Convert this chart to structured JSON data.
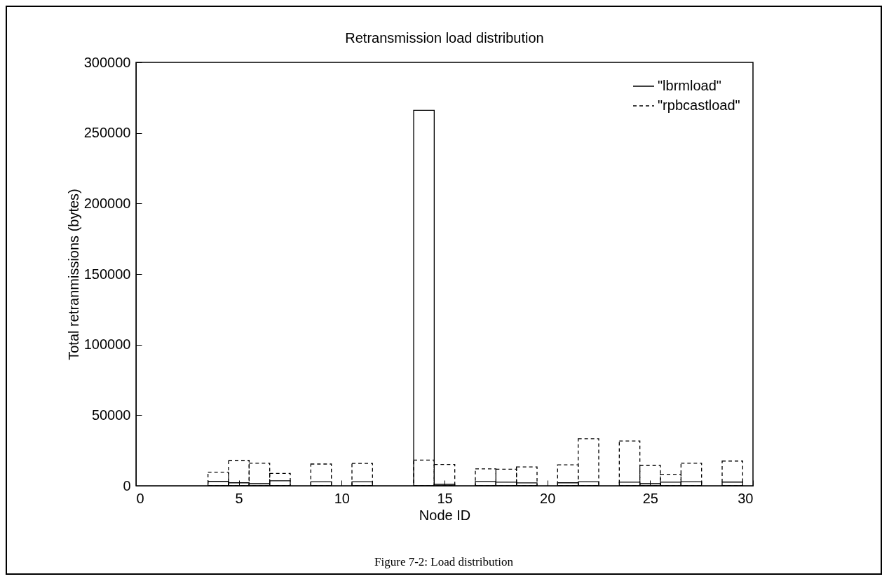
{
  "chart_data": {
    "type": "bar",
    "title": "Retransmission load distribution",
    "xlabel": "Node ID",
    "ylabel": "Total retranmissions (bytes)",
    "annotations": [
      "Figure 7-2: Load distribution"
    ],
    "x": [
      4,
      5,
      6,
      7,
      9,
      11,
      14,
      15,
      17,
      18,
      19,
      21,
      22,
      24,
      25,
      26,
      27,
      29
    ],
    "series": [
      {
        "name": "\"lbrmload\"",
        "color": "#000000",
        "line_style": "solid",
        "values": [
          3100,
          2100,
          1500,
          3500,
          2800,
          2800,
          266000,
          1000,
          3000,
          2500,
          2000,
          2100,
          2800,
          2500,
          1500,
          2500,
          2800,
          2600
        ]
      },
      {
        "name": "\"rpbcastload\"",
        "color": "#000000",
        "line_style": "dashed",
        "values": [
          9600,
          18000,
          16000,
          8800,
          15400,
          15800,
          18200,
          15100,
          12000,
          11700,
          13300,
          14800,
          33300,
          31700,
          14400,
          8100,
          16000,
          17500
        ]
      }
    ],
    "xlim": [
      0,
      30
    ],
    "xticks": [
      0,
      5,
      10,
      15,
      20,
      25,
      30
    ],
    "ylim": [
      0,
      300000
    ],
    "yticks": [
      0,
      50000,
      100000,
      150000,
      200000,
      250000,
      300000
    ],
    "grid": false,
    "legend": "top right"
  }
}
